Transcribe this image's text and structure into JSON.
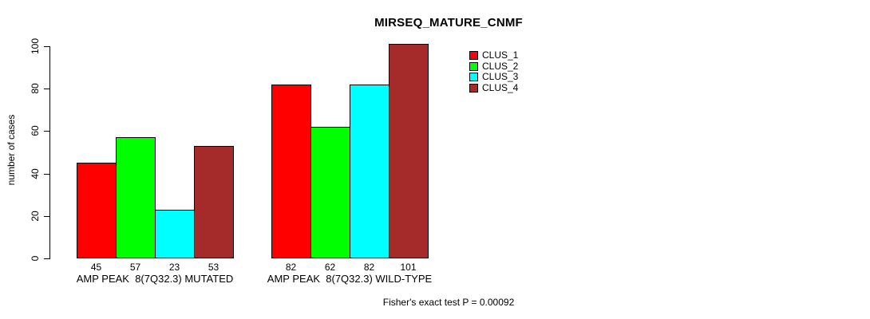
{
  "chart_data": {
    "type": "bar",
    "title": "MIRSEQ_MATURE_CNMF",
    "ylabel": "number of cases",
    "ylim": [
      0,
      100
    ],
    "yticks": [
      0,
      20,
      40,
      60,
      80,
      100
    ],
    "grid": false,
    "legend_position": "top-right",
    "categories": [
      "AMP PEAK  8(7Q32.3) MUTATED",
      "AMP PEAK  8(7Q32.3) WILD-TYPE"
    ],
    "series": [
      {
        "name": "CLUS_1",
        "color": "#FF0000",
        "values": [
          45,
          82
        ]
      },
      {
        "name": "CLUS_2",
        "color": "#00FF00",
        "values": [
          57,
          62
        ]
      },
      {
        "name": "CLUS_3",
        "color": "#00FFFF",
        "values": [
          23,
          82
        ]
      },
      {
        "name": "CLUS_4",
        "color": "#A52A2A",
        "values": [
          53,
          101
        ]
      }
    ],
    "bar_value_labels": [
      [
        45,
        57,
        23,
        53
      ],
      [
        82,
        62,
        82,
        101
      ]
    ],
    "annotation": "Fisher's exact test P = 0.00092"
  }
}
